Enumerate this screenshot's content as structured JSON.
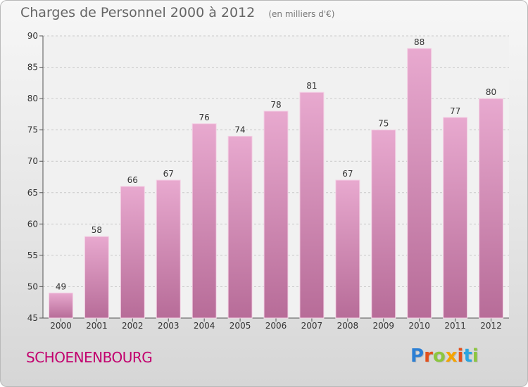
{
  "header": {
    "title": "Charges de Personnel 2000 à 2012",
    "unit": "(en milliers d'€)"
  },
  "footer": {
    "commune": "SCHOENENBOURG",
    "brand": "Proxiti",
    "brand_colors": [
      "#2c7fd4",
      "#e3501b",
      "#8cc63f",
      "#f5a400",
      "#e3501b",
      "#2aa5e0",
      "#8cc63f"
    ]
  },
  "colors": {
    "bar_top": "#e8a9cf",
    "bar_bottom": "#b76c98",
    "commune": "#c2006e"
  },
  "chart_data": {
    "type": "bar",
    "title": "Charges de Personnel 2000 à 2012",
    "subtitle": "(en milliers d'€)",
    "xlabel": "",
    "ylabel": "",
    "categories": [
      "2000",
      "2001",
      "2002",
      "2003",
      "2004",
      "2005",
      "2006",
      "2007",
      "2008",
      "2009",
      "2010",
      "2011",
      "2012"
    ],
    "values": [
      49,
      58,
      66,
      67,
      76,
      74,
      78,
      81,
      67,
      75,
      88,
      77,
      80
    ],
    "ylim": [
      45,
      90
    ],
    "yticks": [
      45,
      50,
      55,
      60,
      65,
      70,
      75,
      80,
      85,
      90
    ],
    "grid": true,
    "data_labels": true
  }
}
